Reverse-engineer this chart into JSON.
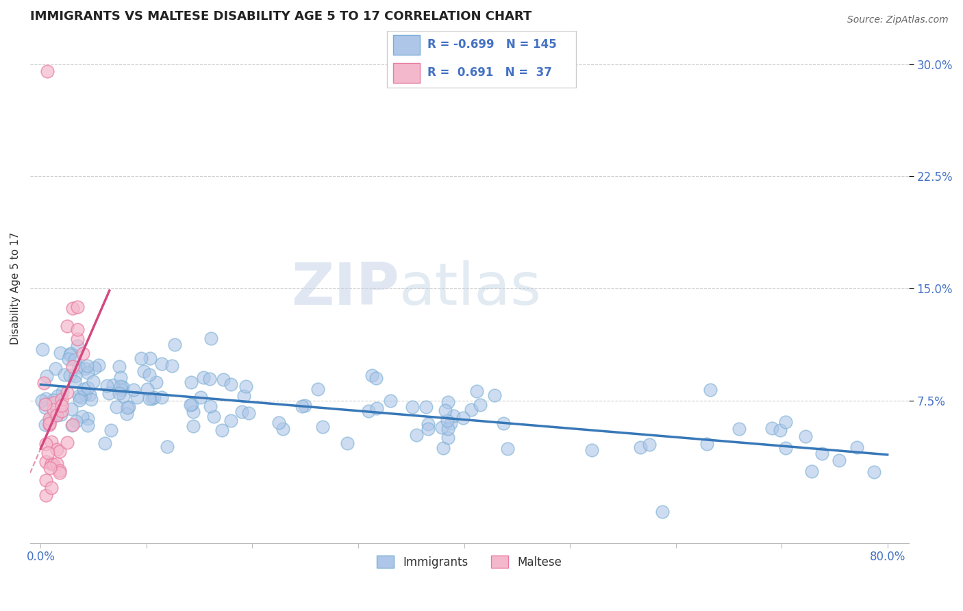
{
  "title": "IMMIGRANTS VS MALTESE DISABILITY AGE 5 TO 17 CORRELATION CHART",
  "source_text": "Source: ZipAtlas.com",
  "ylabel": "Disability Age 5 to 17",
  "xlim": [
    -0.01,
    0.82
  ],
  "ylim": [
    -0.02,
    0.32
  ],
  "yticks": [
    0.075,
    0.15,
    0.225,
    0.3
  ],
  "yticklabels": [
    "7.5%",
    "15.0%",
    "22.5%",
    "30.0%"
  ],
  "blue_color": "#aec6e8",
  "blue_edge_color": "#7aafd4",
  "pink_color": "#f4b8cc",
  "pink_edge_color": "#e87da0",
  "blue_line_color": "#3878b8",
  "pink_line_color": "#d44880",
  "pink_dash_color": "#d44880",
  "legend_R1": "-0.699",
  "legend_N1": "145",
  "legend_R2": "0.691",
  "legend_N2": "37",
  "watermark_zip": "ZIP",
  "watermark_atlas": "atlas",
  "legend_label1": "Immigrants",
  "legend_label2": "Maltese",
  "title_fontsize": 13,
  "tick_label_color": "#4472c4",
  "grid_color": "#cccccc"
}
